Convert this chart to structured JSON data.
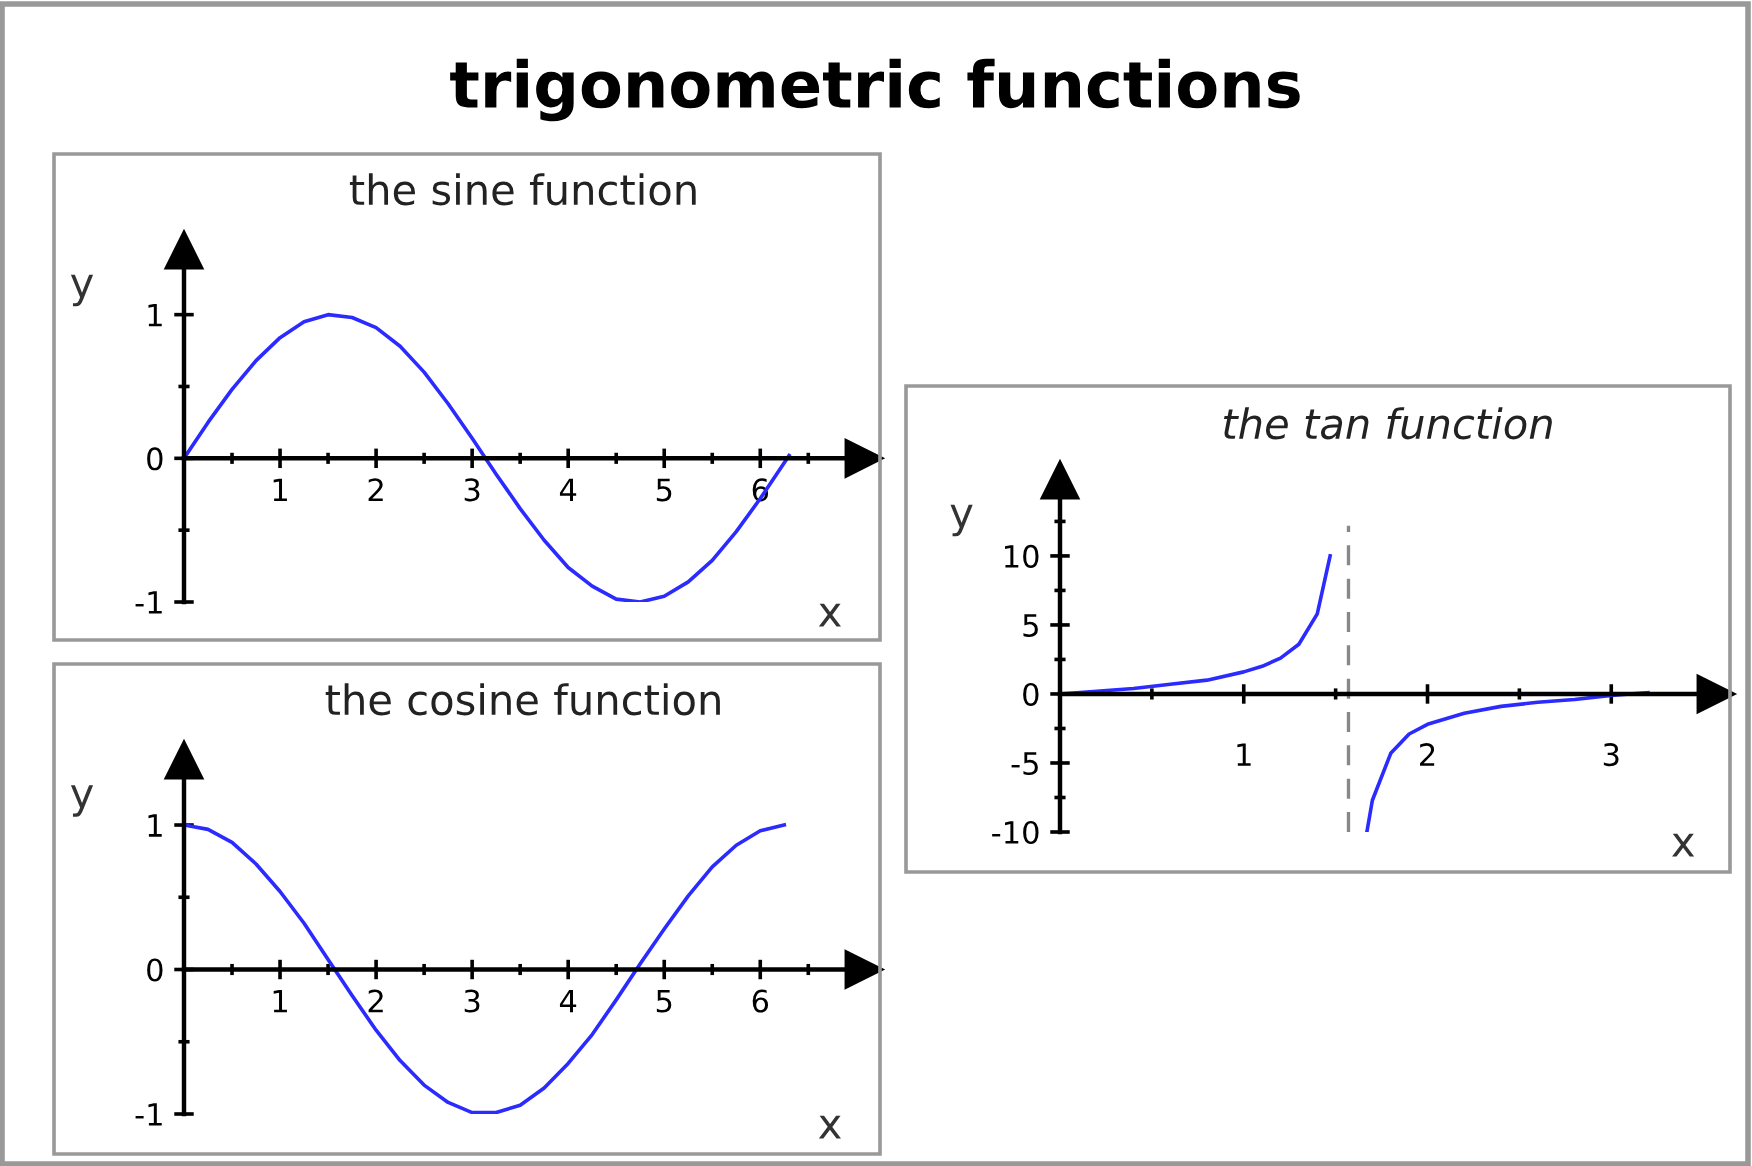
{
  "chart_data": [
    {
      "type": "line",
      "annotations": [
        "trigonometric functions"
      ],
      "title": "the sine function",
      "xlabel": "x",
      "ylabel": "y",
      "x": [
        0,
        0.25,
        0.5,
        0.75,
        1,
        1.25,
        1.5,
        1.75,
        2,
        2.25,
        2.5,
        2.75,
        3,
        3.25,
        3.5,
        3.75,
        4,
        4.25,
        4.5,
        4.75,
        5,
        5.25,
        5.5,
        5.75,
        6,
        6.25,
        6.3
      ],
      "series": [
        {
          "color": "#2b2bff",
          "values": [
            0,
            0.25,
            0.48,
            0.68,
            0.84,
            0.95,
            1.0,
            0.98,
            0.91,
            0.78,
            0.6,
            0.38,
            0.14,
            -0.11,
            -0.35,
            -0.57,
            -0.76,
            -0.89,
            -0.98,
            -1.0,
            -0.96,
            -0.86,
            -0.71,
            -0.51,
            -0.28,
            -0.03,
            0.02
          ]
        }
      ],
      "xlim": [
        0,
        7.08
      ],
      "ylim": [
        -1,
        1.45
      ],
      "xticks": [
        1,
        2,
        3,
        4,
        5,
        6
      ],
      "yticks": [
        -1,
        0,
        1
      ],
      "grid": false,
      "legend": false,
      "line_style": "solid"
    },
    {
      "type": "line",
      "title": "the cosine function",
      "xlabel": "x",
      "ylabel": "y",
      "x": [
        0,
        0.25,
        0.5,
        0.75,
        1,
        1.25,
        1.5,
        1.75,
        2,
        2.25,
        2.5,
        2.75,
        3,
        3.25,
        3.5,
        3.75,
        4,
        4.25,
        4.5,
        4.75,
        5,
        5.25,
        5.5,
        5.75,
        6,
        6.25
      ],
      "series": [
        {
          "color": "#2b2bff",
          "values": [
            1,
            0.97,
            0.88,
            0.73,
            0.54,
            0.32,
            0.07,
            -0.18,
            -0.42,
            -0.63,
            -0.8,
            -0.92,
            -0.99,
            -0.99,
            -0.94,
            -0.82,
            -0.65,
            -0.45,
            -0.21,
            0.04,
            0.28,
            0.51,
            0.71,
            0.86,
            0.96,
            1.0
          ]
        }
      ],
      "xlim": [
        0,
        7.08
      ],
      "ylim": [
        -1,
        1.45
      ],
      "xticks": [
        1,
        2,
        3,
        4,
        5,
        6
      ],
      "yticks": [
        -1,
        0,
        1
      ],
      "grid": false,
      "legend": false,
      "line_style": "solid"
    },
    {
      "type": "line",
      "title": "the tan function",
      "xlabel": "x",
      "ylabel": "y",
      "x": [
        0,
        0.2,
        0.4,
        0.6,
        0.8,
        1.0,
        1.1,
        1.2,
        1.3,
        1.4,
        1.47,
        1.57,
        1.67,
        1.7,
        1.8,
        1.9,
        2.0,
        2.2,
        2.4,
        2.6,
        2.8,
        3.0,
        3.2
      ],
      "series": [
        {
          "color": "#2b2bff",
          "values": [
            0,
            0.2,
            0.4,
            0.7,
            1.0,
            1.6,
            2.0,
            2.6,
            3.6,
            5.8,
            10,
            null,
            -10,
            -7.7,
            -4.3,
            -2.9,
            -2.2,
            -1.4,
            -0.9,
            -0.6,
            -0.4,
            -0.1,
            0.1
          ]
        }
      ],
      "ref_lines": [
        {
          "axis": "x",
          "value": 1.57,
          "color": "#888888",
          "line_style": "dashed"
        }
      ],
      "xlim": [
        0,
        3.57
      ],
      "ylim": [
        -10,
        15.5
      ],
      "xticks": [
        1,
        2,
        3
      ],
      "yticks": [
        -10,
        -5,
        0,
        5,
        10
      ],
      "grid": false,
      "legend": false,
      "line_style": "solid"
    }
  ]
}
